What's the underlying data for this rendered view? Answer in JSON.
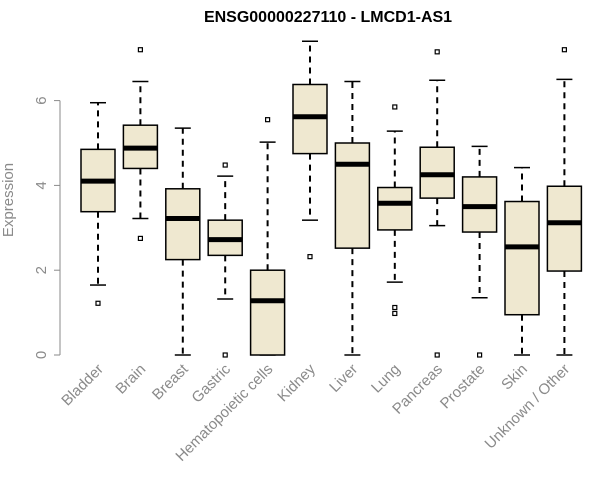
{
  "chart_data": {
    "type": "boxplot",
    "title": "ENSG00000227110 - LMCD1-AS1",
    "ylabel": "Expression",
    "xlabel": "",
    "ylim": [
      0,
      7.4
    ],
    "yticks": [
      0,
      2,
      4,
      6
    ],
    "grid": false,
    "box_fill": "#efe8d0",
    "box_stroke": "#000000",
    "categories": [
      "Bladder",
      "Brain",
      "Breast",
      "Gastric",
      "Hematopoietic cells",
      "Kidney",
      "Liver",
      "Lung",
      "Pancreas",
      "Prostate",
      "Skin",
      "Unknown / Other"
    ],
    "boxes": [
      {
        "whisker_low": 1.65,
        "q1": 3.38,
        "median": 4.1,
        "q3": 4.85,
        "whisker_high": 5.95,
        "outliers": [
          1.22
        ]
      },
      {
        "whisker_low": 3.22,
        "q1": 4.4,
        "median": 4.88,
        "q3": 5.42,
        "whisker_high": 6.45,
        "outliers": [
          7.2,
          2.75
        ]
      },
      {
        "whisker_low": 0.0,
        "q1": 2.25,
        "median": 3.22,
        "q3": 3.92,
        "whisker_high": 5.35,
        "outliers": []
      },
      {
        "whisker_low": 1.32,
        "q1": 2.35,
        "median": 2.72,
        "q3": 3.18,
        "whisker_high": 4.22,
        "outliers": [
          4.48,
          0.0
        ]
      },
      {
        "whisker_low": 0.0,
        "q1": 0.0,
        "median": 1.28,
        "q3": 2.0,
        "whisker_high": 5.02,
        "outliers": [
          5.55
        ]
      },
      {
        "whisker_low": 3.18,
        "q1": 4.75,
        "median": 5.62,
        "q3": 6.38,
        "whisker_high": 7.4,
        "outliers": [
          2.32
        ]
      },
      {
        "whisker_low": 0.0,
        "q1": 2.52,
        "median": 4.5,
        "q3": 5.0,
        "whisker_high": 6.45,
        "outliers": []
      },
      {
        "whisker_low": 1.72,
        "q1": 2.95,
        "median": 3.58,
        "q3": 3.95,
        "whisker_high": 5.28,
        "outliers": [
          5.85,
          1.12,
          0.98
        ]
      },
      {
        "whisker_low": 3.05,
        "q1": 3.7,
        "median": 4.25,
        "q3": 4.9,
        "whisker_high": 6.48,
        "outliers": [
          7.15,
          0.0
        ]
      },
      {
        "whisker_low": 1.35,
        "q1": 2.9,
        "median": 3.5,
        "q3": 4.2,
        "whisker_high": 4.92,
        "outliers": [
          0.0
        ]
      },
      {
        "whisker_low": 0.0,
        "q1": 0.95,
        "median": 2.55,
        "q3": 3.62,
        "whisker_high": 4.42,
        "outliers": []
      },
      {
        "whisker_low": 0.0,
        "q1": 1.98,
        "median": 3.12,
        "q3": 3.98,
        "whisker_high": 6.5,
        "outliers": [
          7.2
        ]
      }
    ]
  }
}
